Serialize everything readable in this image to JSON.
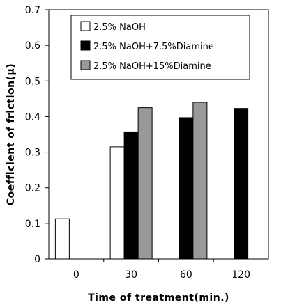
{
  "chart_data": {
    "type": "bar",
    "xlabel": "Time of treatment(min.)",
    "ylabel": "Coefficient of friction(μ)",
    "ylim": [
      0,
      0.7
    ],
    "yticks": [
      "0",
      "0.1",
      "0.2",
      "0.3",
      "0.4",
      "0.5",
      "0.6",
      "0.7"
    ],
    "categories": [
      "0",
      "30",
      "60",
      "120"
    ],
    "grid": false,
    "legend_position": "top-right",
    "series": [
      {
        "name": "2.5% NaOH",
        "color": "#ffffff",
        "values": [
          0.113,
          0.315,
          null,
          null
        ]
      },
      {
        "name": "2.5% NaOH+7.5%Diamine",
        "color": "#000000",
        "values": [
          null,
          0.357,
          0.397,
          0.423
        ]
      },
      {
        "name": "2.5% NaOH+15%Diamine",
        "color": "#999999",
        "values": [
          null,
          0.425,
          0.44,
          null
        ]
      }
    ]
  }
}
